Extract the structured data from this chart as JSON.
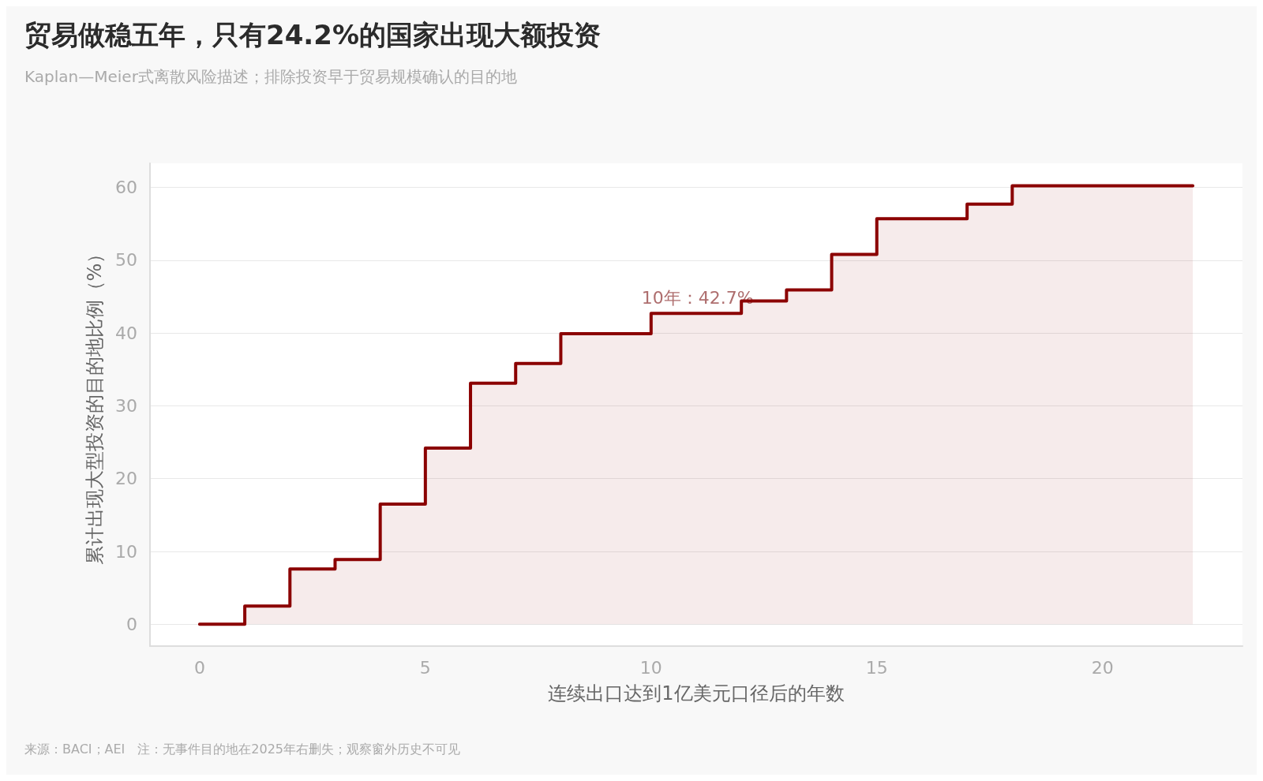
{
  "chart_data": {
    "type": "step",
    "title": "贸易做稳五年，只有24.2%的国家出现大额投资",
    "subtitle": "Kaplan—Meier式离散风险描述；排除投资早于贸易规模确认的目的地",
    "xlabel": "连续出口达到1亿美元口径后的年数",
    "ylabel": "累计出现大型投资的目的地比例（%）",
    "x": [
      0,
      1,
      2,
      3,
      4,
      5,
      6,
      7,
      8,
      10,
      12,
      13,
      14,
      15,
      17,
      18,
      22
    ],
    "series": [
      {
        "color": "#8b0000",
        "values": [
          0,
          2.5,
          7.6,
          8.9,
          16.5,
          24.2,
          33.1,
          35.8,
          39.9,
          42.7,
          44.4,
          45.9,
          50.8,
          55.7,
          57.7,
          60.2,
          60.2
        ]
      }
    ],
    "xlim": [
      -1.1,
      23.1
    ],
    "xticks": [
      0,
      5,
      10,
      15,
      20
    ],
    "ylim": [
      -3,
      63.3
    ],
    "yticks": [
      0,
      10,
      20,
      30,
      40,
      50,
      60
    ],
    "grid": "y",
    "marker": "none",
    "line_style": "solid",
    "annotations": [
      {
        "text": "10年：42.7%",
        "x": 10,
        "y": 42.7
      },
      "来源：BACI；AEI　注：无事件目的地在2025年右删失；观察窗外历史不可见"
    ]
  }
}
